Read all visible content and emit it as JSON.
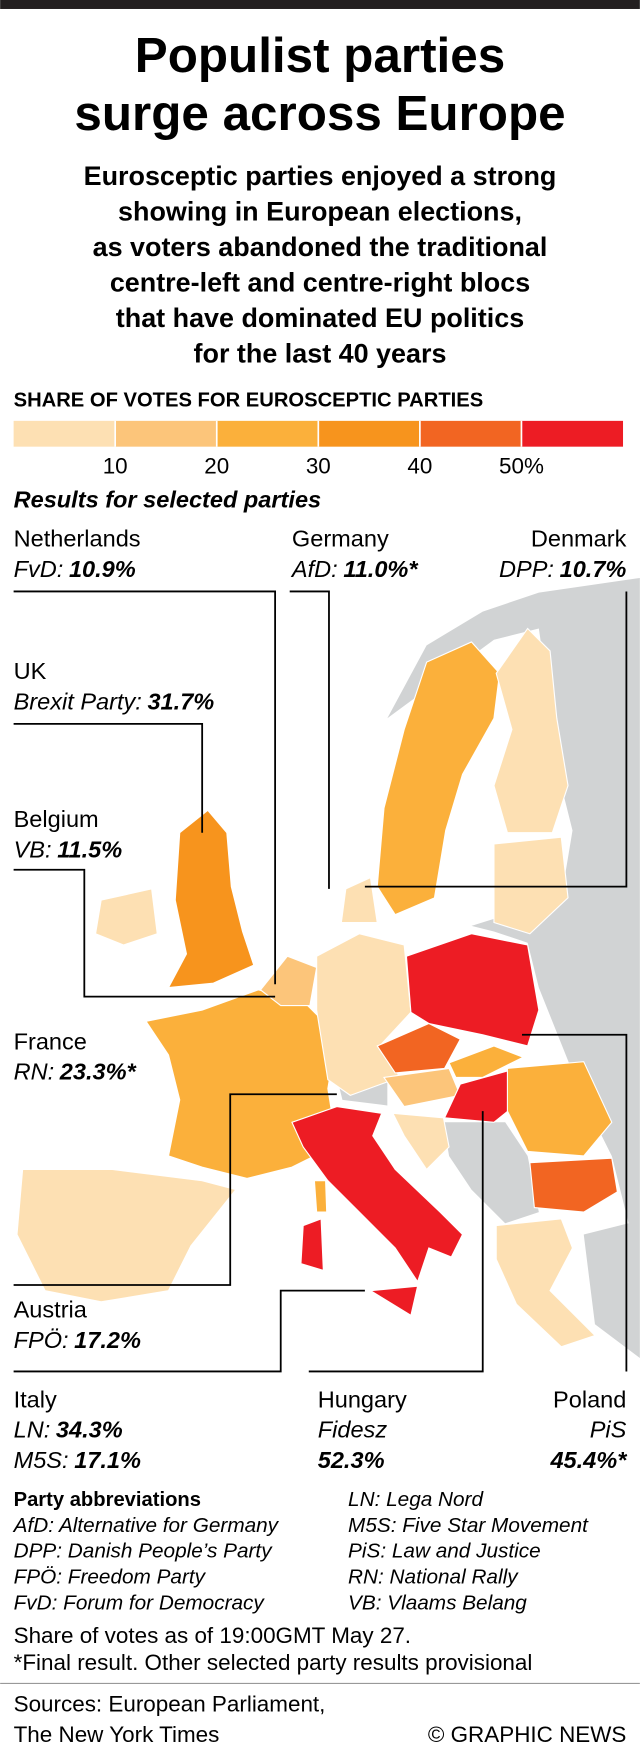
{
  "header": {
    "title": [
      "Populist parties",
      "surge across Europe"
    ],
    "subtitle": [
      "Eurosceptic parties enjoyed a strong",
      "showing in European elections,",
      "as voters abandoned the traditional",
      "centre-left and centre-right blocs",
      "that have dominated EU politics",
      "for the last 40 years"
    ]
  },
  "legend": {
    "title": "SHARE OF VOTES FOR EUROSCEPTIC PARTIES",
    "colors": [
      "#fde0b3",
      "#fcc57a",
      "#fbb03b",
      "#f7941d",
      "#f26522",
      "#ed1c24"
    ],
    "ticks": [
      "10",
      "20",
      "30",
      "40",
      "50%"
    ]
  },
  "results": {
    "title": "Results for selected parties",
    "countries": [
      {
        "name": "Netherlands",
        "lines": [
          {
            "party": "FvD:",
            "value": "10.9%"
          }
        ]
      },
      {
        "name": "Germany",
        "lines": [
          {
            "party": "AfD:",
            "value": "11.0%*"
          }
        ]
      },
      {
        "name": "Denmark",
        "lines": [
          {
            "party": "DPP:",
            "value": "10.7%"
          }
        ]
      },
      {
        "name": "UK",
        "lines": [
          {
            "party": "Brexit Party:",
            "value": "31.7%"
          }
        ]
      },
      {
        "name": "Belgium",
        "lines": [
          {
            "party": "VB:",
            "value": "11.5%"
          }
        ]
      },
      {
        "name": "France",
        "lines": [
          {
            "party": "RN:",
            "value": "23.3%*"
          }
        ]
      },
      {
        "name": "Austria",
        "lines": [
          {
            "party": "FPÖ:",
            "value": "17.2%"
          }
        ]
      },
      {
        "name": "Italy",
        "lines": [
          {
            "party": "LN:",
            "value": "34.3%"
          },
          {
            "party": "M5S:",
            "value": "17.1%"
          }
        ]
      },
      {
        "name": "Hungary",
        "lines": [
          {
            "party": "Fidesz"
          },
          {
            "value": "52.3%"
          }
        ]
      },
      {
        "name": "Poland",
        "lines": [
          {
            "party": "PiS"
          },
          {
            "value": "45.4%*"
          }
        ]
      }
    ]
  },
  "abbreviations": {
    "title": "Party abbreviations",
    "items": [
      "AfD: Alternative for Germany",
      "DPP: Danish People’s Party",
      "FPÖ: Freedom Party",
      "FvD: Forum for Democracy",
      "LN: Lega Nord",
      "M5S: Five Star Movement",
      "PiS: Law and Justice",
      "RN: National Rally",
      "VB: Vlaams Belang"
    ]
  },
  "notes": [
    "Share of votes as of 19:00GMT May 27.",
    "*Final result. Other selected party results provisional"
  ],
  "sources": [
    "Sources: European Parliament,",
    "The New York Times"
  ],
  "credit": "© GRAPHIC NEWS"
}
